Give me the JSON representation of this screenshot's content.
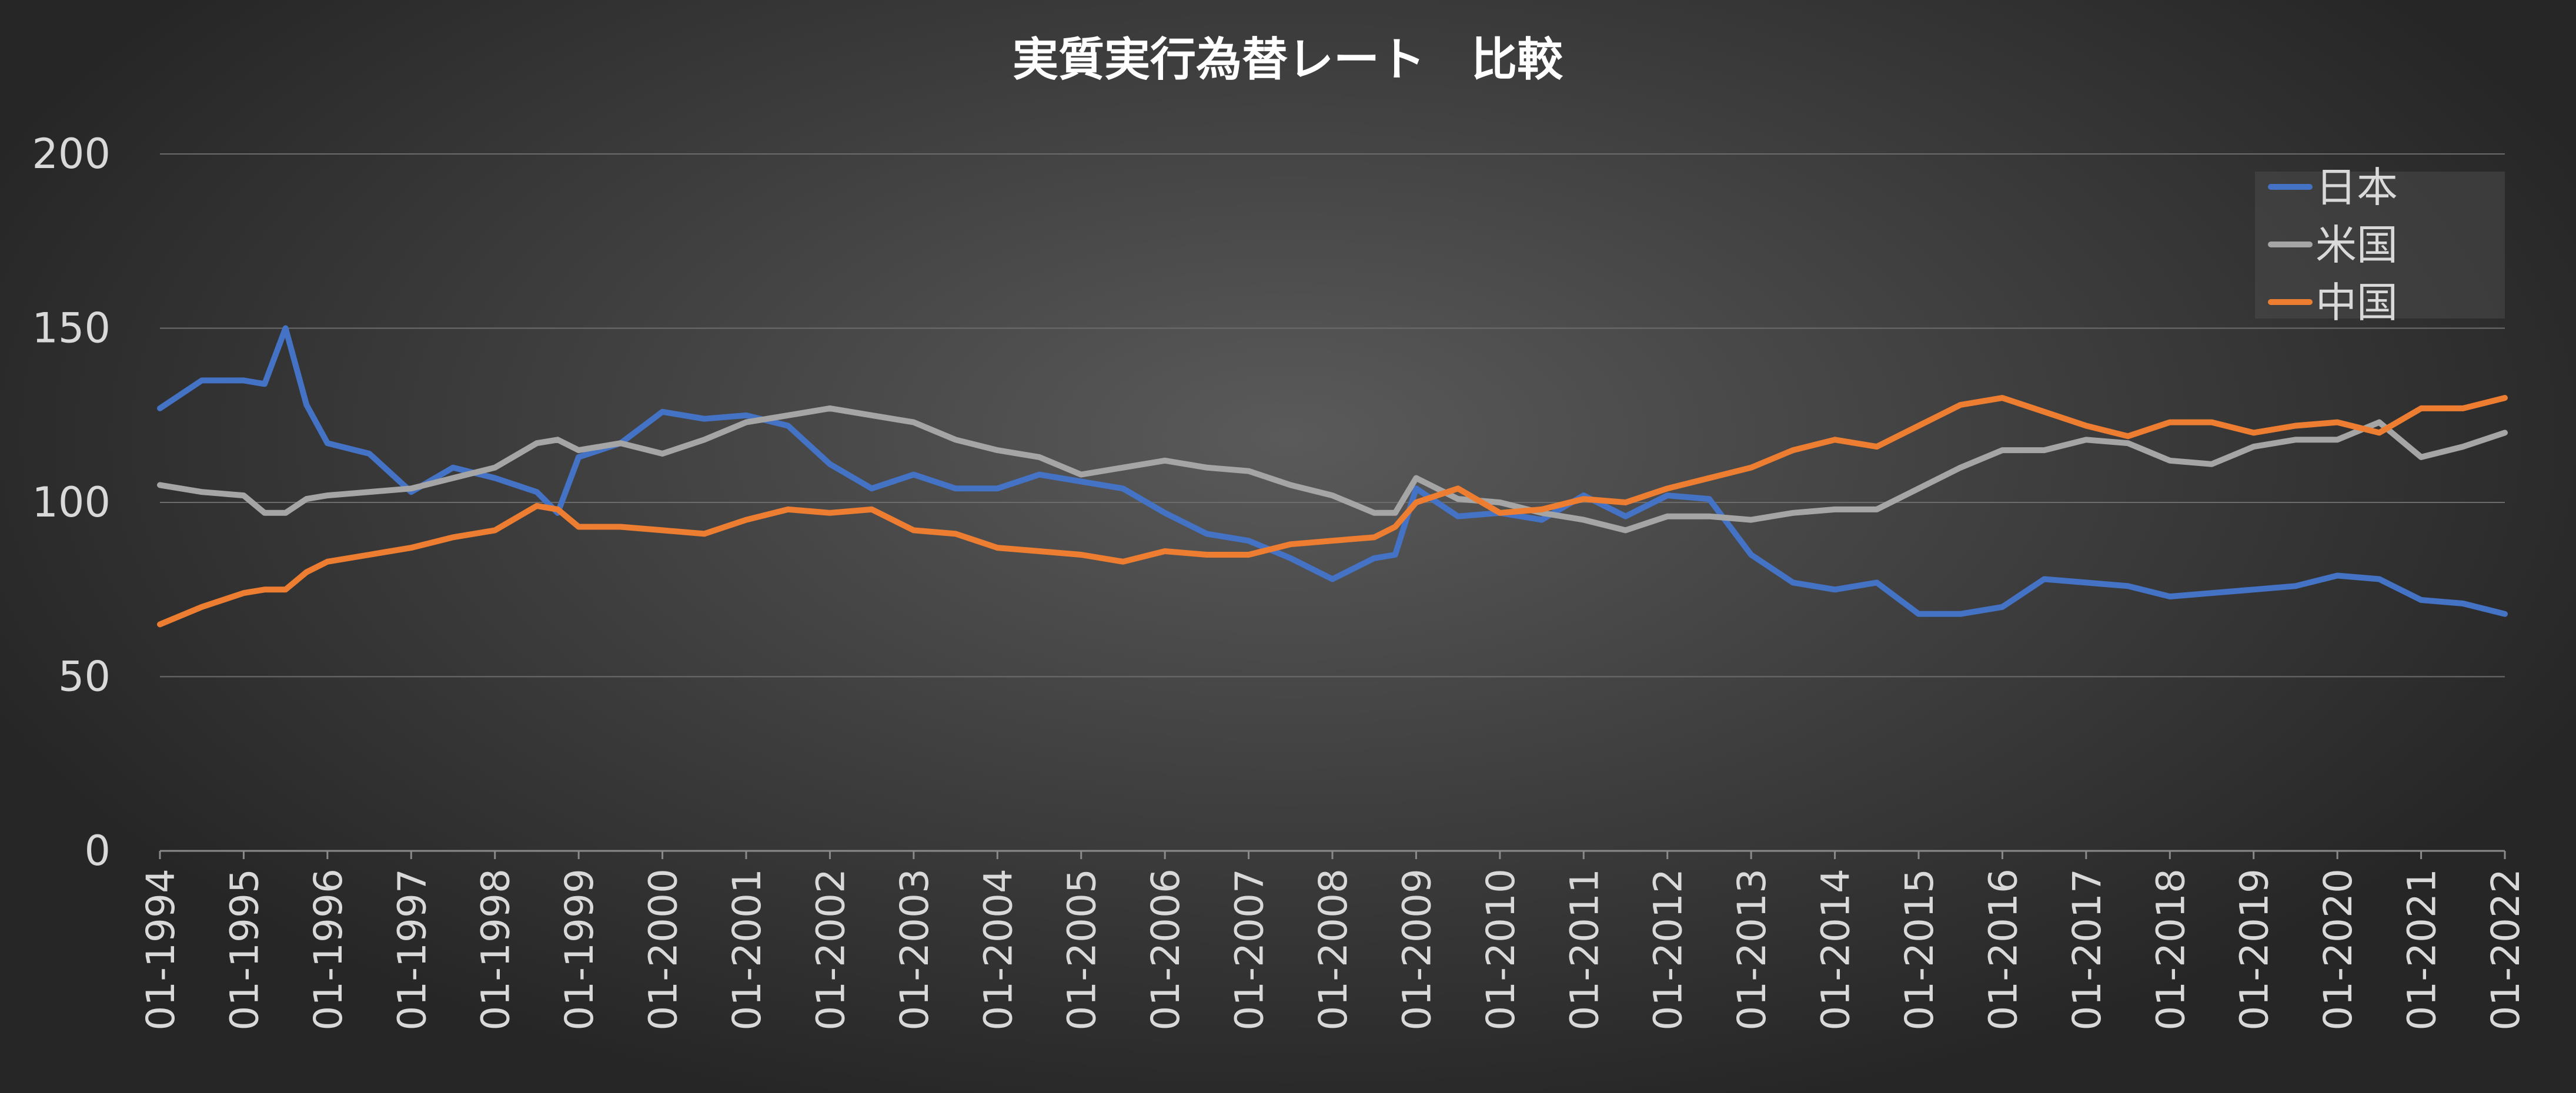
{
  "chart_data": {
    "type": "line",
    "title": "実質実行為替レート　比較",
    "xlabel": "",
    "ylabel": "",
    "ylim": [
      0,
      200
    ],
    "yticks": [
      "0",
      "50",
      "100",
      "150",
      "200"
    ],
    "xticks": [
      "01-1994",
      "01-1995",
      "01-1996",
      "01-1997",
      "01-1998",
      "01-1999",
      "01-2000",
      "01-2001",
      "01-2002",
      "01-2003",
      "01-2004",
      "01-2005",
      "01-2006",
      "01-2007",
      "01-2008",
      "01-2009",
      "01-2010",
      "01-2011",
      "01-2012",
      "01-2013",
      "01-2014",
      "01-2015",
      "01-2016",
      "01-2017",
      "01-2018",
      "01-2019",
      "01-2020",
      "01-2021",
      "01-2022"
    ],
    "grid": true,
    "legend_position": "top-right",
    "x": [
      "1994-01",
      "1994-07",
      "1995-01",
      "1995-04",
      "1995-07",
      "1995-10",
      "1996-01",
      "1996-07",
      "1997-01",
      "1997-07",
      "1998-01",
      "1998-07",
      "1998-10",
      "1999-01",
      "1999-07",
      "2000-01",
      "2000-07",
      "2001-01",
      "2001-07",
      "2002-01",
      "2002-07",
      "2003-01",
      "2003-07",
      "2004-01",
      "2004-07",
      "2005-01",
      "2005-07",
      "2006-01",
      "2006-07",
      "2007-01",
      "2007-07",
      "2008-01",
      "2008-07",
      "2008-10",
      "2009-01",
      "2009-07",
      "2010-01",
      "2010-07",
      "2011-01",
      "2011-07",
      "2012-01",
      "2012-07",
      "2013-01",
      "2013-07",
      "2014-01",
      "2014-07",
      "2015-01",
      "2015-07",
      "2016-01",
      "2016-07",
      "2017-01",
      "2017-07",
      "2018-01",
      "2018-07",
      "2019-01",
      "2019-07",
      "2020-01",
      "2020-07",
      "2021-01",
      "2021-07",
      "2022-01"
    ],
    "series": [
      {
        "name": "日本",
        "color": "#4472c4",
        "values": [
          127,
          135,
          135,
          134,
          150,
          128,
          117,
          114,
          103,
          110,
          107,
          103,
          97,
          113,
          117,
          126,
          124,
          125,
          122,
          111,
          104,
          108,
          104,
          104,
          108,
          106,
          104,
          97,
          91,
          89,
          84,
          78,
          84,
          85,
          104,
          96,
          97,
          95,
          102,
          96,
          102,
          101,
          85,
          77,
          75,
          77,
          68,
          68,
          70,
          78,
          77,
          76,
          73,
          74,
          75,
          76,
          79,
          78,
          72,
          71,
          68
        ],
        "label": "日本"
      },
      {
        "name": "米国",
        "color": "#a5a5a5",
        "values": [
          105,
          103,
          102,
          97,
          97,
          101,
          102,
          103,
          104,
          107,
          110,
          117,
          118,
          115,
          117,
          114,
          118,
          123,
          125,
          127,
          125,
          123,
          118,
          115,
          113,
          108,
          110,
          112,
          110,
          109,
          105,
          102,
          97,
          97,
          107,
          101,
          100,
          97,
          95,
          92,
          96,
          96,
          95,
          97,
          98,
          98,
          104,
          110,
          115,
          115,
          118,
          117,
          112,
          111,
          116,
          118,
          118,
          123,
          113,
          116,
          120
        ],
        "label": "米国"
      },
      {
        "name": "中国",
        "color": "#ed7d31",
        "values": [
          65,
          70,
          74,
          75,
          75,
          80,
          83,
          85,
          87,
          90,
          92,
          99,
          98,
          93,
          93,
          92,
          91,
          95,
          98,
          97,
          98,
          92,
          91,
          87,
          86,
          85,
          83,
          86,
          85,
          85,
          88,
          89,
          90,
          93,
          100,
          104,
          97,
          98,
          101,
          100,
          104,
          107,
          110,
          115,
          118,
          116,
          122,
          128,
          130,
          126,
          122,
          119,
          123,
          123,
          120,
          122,
          123,
          120,
          127,
          127,
          130
        ],
        "label": "中国"
      }
    ]
  }
}
